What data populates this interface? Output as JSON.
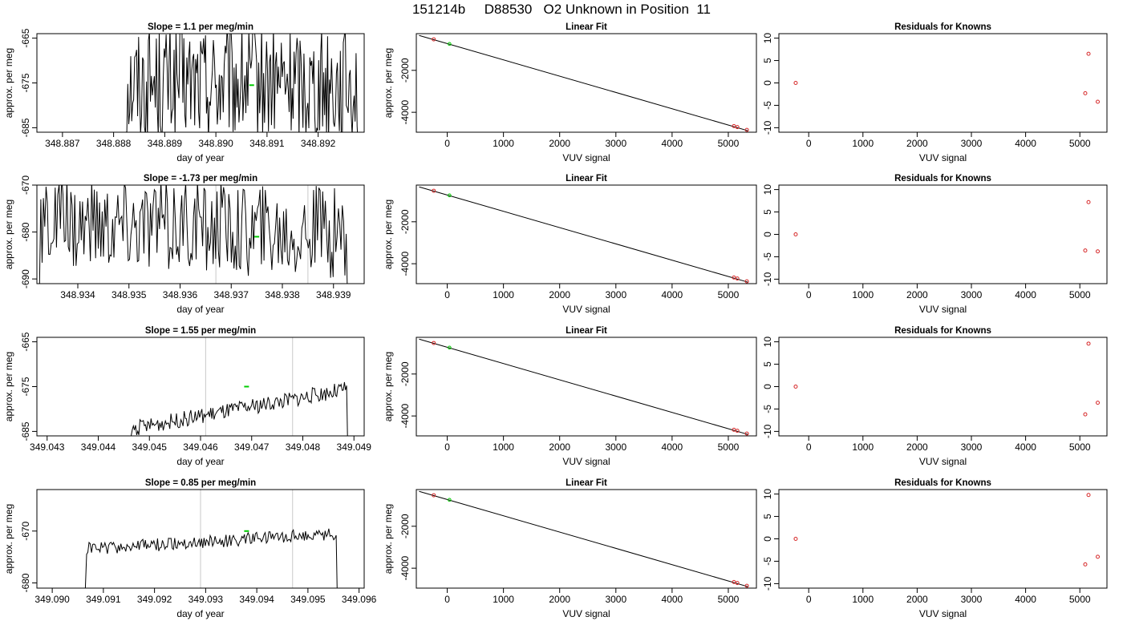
{
  "figure_title": "151214b     D88530   O2 Unknown in Position  11",
  "colors": {
    "trace": "#000000",
    "known": "#d62728",
    "unknown": "#00cc00",
    "window": "#c8c8c8",
    "axis": "#000000"
  },
  "chart_data": [
    {
      "type": "line",
      "title": "Slope =  1.1  per meg/min",
      "xlabel": "day of year",
      "ylabel": "approx. per meg",
      "xlim": [
        348.8865,
        348.8929
      ],
      "ylim": [
        -686,
        -664
      ],
      "xticks": [
        "348.887",
        "348.888",
        "348.889",
        "348.890",
        "348.891",
        "348.892"
      ],
      "yticks": [
        "-685",
        "-675",
        "-665"
      ],
      "x_start": 348.8882,
      "x_end": 348.8928,
      "n": 240,
      "trace_base": -675,
      "trace_noise": 26,
      "trace_trend": 0,
      "windows": [],
      "unknown_point": [
        348.8907,
        -675.5
      ]
    },
    {
      "type": "scatter",
      "title": "Linear Fit",
      "xlabel": "VUV signal",
      "ylabel": "approx. per meg",
      "xlim": [
        -550,
        5500
      ],
      "ylim": [
        -4950,
        -250
      ],
      "xticks": [
        "0",
        "1000",
        "2000",
        "3000",
        "4000",
        "5000"
      ],
      "yticks": [
        "-2000",
        "-4000"
      ],
      "fit_line": [
        [
          -500,
          -335
        ],
        [
          5350,
          -4880
        ]
      ],
      "knowns": [
        [
          -240,
          -520
        ],
        [
          5100,
          -4660
        ],
        [
          5160,
          -4705
        ],
        [
          5330,
          -4840
        ]
      ],
      "unknown": [
        [
          40,
          -740
        ]
      ]
    },
    {
      "type": "scatter",
      "title": "Residuals for Knowns",
      "xlabel": "VUV signal",
      "ylabel": "",
      "xlim": [
        -550,
        5500
      ],
      "ylim": [
        -11,
        11
      ],
      "xticks": [
        "0",
        "1000",
        "2000",
        "3000",
        "4000",
        "5000"
      ],
      "yticks": [
        "-10",
        "-5",
        "0",
        "5",
        "10"
      ],
      "knowns": [
        [
          -240,
          0
        ],
        [
          5100,
          -2.3
        ],
        [
          5160,
          6.5
        ],
        [
          5330,
          -4.2
        ]
      ]
    },
    {
      "type": "line",
      "title": "Slope =  -1.73  per meg/min",
      "xlabel": "day of year",
      "ylabel": "approx. per meg",
      "xlim": [
        348.9332,
        348.9396
      ],
      "ylim": [
        -691,
        -670
      ],
      "xticks": [
        "348.934",
        "348.935",
        "348.936",
        "348.937",
        "348.938",
        "348.939"
      ],
      "yticks": [
        "-690",
        "-680",
        "-670"
      ],
      "x_start": 348.9332,
      "x_end": 348.9393,
      "n": 240,
      "trace_base": -679,
      "trace_noise": 20,
      "trace_trend": -2,
      "windows": [
        348.9367,
        348.9385
      ],
      "unknown_point": [
        348.9375,
        -681
      ]
    },
    {
      "type": "scatter",
      "title": "Linear Fit",
      "xlabel": "VUV signal",
      "ylabel": "approx. per meg",
      "xlim": [
        -550,
        5500
      ],
      "ylim": [
        -4950,
        -250
      ],
      "xticks": [
        "0",
        "1000",
        "2000",
        "3000",
        "4000",
        "5000"
      ],
      "yticks": [
        "-2000",
        "-4000"
      ],
      "fit_line": [
        [
          -500,
          -335
        ],
        [
          5350,
          -4880
        ]
      ],
      "knowns": [
        [
          -240,
          -520
        ],
        [
          5100,
          -4660
        ],
        [
          5160,
          -4705
        ],
        [
          5330,
          -4840
        ]
      ],
      "unknown": [
        [
          40,
          -740
        ]
      ]
    },
    {
      "type": "scatter",
      "title": "Residuals for Knowns",
      "xlabel": "VUV signal",
      "ylabel": "",
      "xlim": [
        -550,
        5500
      ],
      "ylim": [
        -11,
        11
      ],
      "xticks": [
        "0",
        "1000",
        "2000",
        "3000",
        "4000",
        "5000"
      ],
      "yticks": [
        "-10",
        "-5",
        "0",
        "5",
        "10"
      ],
      "knowns": [
        [
          -240,
          0
        ],
        [
          5100,
          -3.6
        ],
        [
          5160,
          7.2
        ],
        [
          5330,
          -3.8
        ]
      ]
    },
    {
      "type": "line",
      "title": "Slope =  1.55  per meg/min",
      "xlabel": "day of year",
      "ylabel": "approx. per meg",
      "xlim": [
        349.0428,
        349.0492
      ],
      "ylim": [
        -686,
        -664
      ],
      "xticks": [
        "349.043",
        "349.044",
        "349.045",
        "349.046",
        "349.047",
        "349.048",
        "349.049"
      ],
      "yticks": [
        "-685",
        "-675",
        "-665"
      ],
      "x_start": 349.0446,
      "x_end": 349.0489,
      "n": 200,
      "trace_base": -680,
      "trace_noise": 3.5,
      "trace_trend": 9,
      "windows": [
        349.0461,
        349.0478
      ],
      "unknown_point": [
        349.0469,
        -675
      ]
    },
    {
      "type": "scatter",
      "title": "Linear Fit",
      "xlabel": "VUV signal",
      "ylabel": "approx. per meg",
      "xlim": [
        -550,
        5500
      ],
      "ylim": [
        -4950,
        -250
      ],
      "xticks": [
        "0",
        "1000",
        "2000",
        "3000",
        "4000",
        "5000"
      ],
      "yticks": [
        "-2000",
        "-4000"
      ],
      "fit_line": [
        [
          -500,
          -335
        ],
        [
          5350,
          -4880
        ]
      ],
      "knowns": [
        [
          -240,
          -520
        ],
        [
          5100,
          -4660
        ],
        [
          5160,
          -4705
        ],
        [
          5330,
          -4840
        ]
      ],
      "unknown": [
        [
          40,
          -740
        ]
      ]
    },
    {
      "type": "scatter",
      "title": "Residuals for Knowns",
      "xlabel": "VUV signal",
      "ylabel": "",
      "xlim": [
        -550,
        5500
      ],
      "ylim": [
        -11,
        11
      ],
      "xticks": [
        "0",
        "1000",
        "2000",
        "3000",
        "4000",
        "5000"
      ],
      "yticks": [
        "-10",
        "-5",
        "0",
        "5",
        "10"
      ],
      "knowns": [
        [
          -240,
          0
        ],
        [
          5100,
          -6.2
        ],
        [
          5160,
          9.6
        ],
        [
          5330,
          -3.6
        ]
      ]
    },
    {
      "type": "line",
      "title": "Slope =  0.85  per meg/min",
      "xlabel": "day of year",
      "ylabel": "approx. per meg",
      "xlim": [
        349.0897,
        349.0961
      ],
      "ylim": [
        -681,
        -662
      ],
      "xticks": [
        "349.090",
        "349.091",
        "349.092",
        "349.093",
        "349.094",
        "349.095",
        "349.096"
      ],
      "yticks": [
        "-680",
        "-670"
      ],
      "x_start": 349.0906,
      "x_end": 349.0956,
      "n": 210,
      "trace_base": -672,
      "trace_noise": 2.5,
      "trace_trend": 3,
      "windows": [
        349.0929,
        349.0947
      ],
      "unknown_point": [
        349.0938,
        -670
      ]
    },
    {
      "type": "scatter",
      "title": "Linear Fit",
      "xlabel": "VUV signal",
      "ylabel": "approx. per meg",
      "xlim": [
        -550,
        5500
      ],
      "ylim": [
        -4950,
        -250
      ],
      "xticks": [
        "0",
        "1000",
        "2000",
        "3000",
        "4000",
        "5000"
      ],
      "yticks": [
        "-2000",
        "-4000"
      ],
      "fit_line": [
        [
          -500,
          -335
        ],
        [
          5350,
          -4880
        ]
      ],
      "knowns": [
        [
          -240,
          -520
        ],
        [
          5100,
          -4660
        ],
        [
          5160,
          -4705
        ],
        [
          5330,
          -4840
        ]
      ],
      "unknown": [
        [
          40,
          -740
        ]
      ]
    },
    {
      "type": "scatter",
      "title": "Residuals for Knowns",
      "xlabel": "VUV signal",
      "ylabel": "",
      "xlim": [
        -550,
        5500
      ],
      "ylim": [
        -11,
        11
      ],
      "xticks": [
        "0",
        "1000",
        "2000",
        "3000",
        "4000",
        "5000"
      ],
      "yticks": [
        "-10",
        "-5",
        "0",
        "5",
        "10"
      ],
      "knowns": [
        [
          -240,
          0
        ],
        [
          5100,
          -5.7
        ],
        [
          5160,
          9.8
        ],
        [
          5330,
          -4.0
        ]
      ]
    }
  ]
}
